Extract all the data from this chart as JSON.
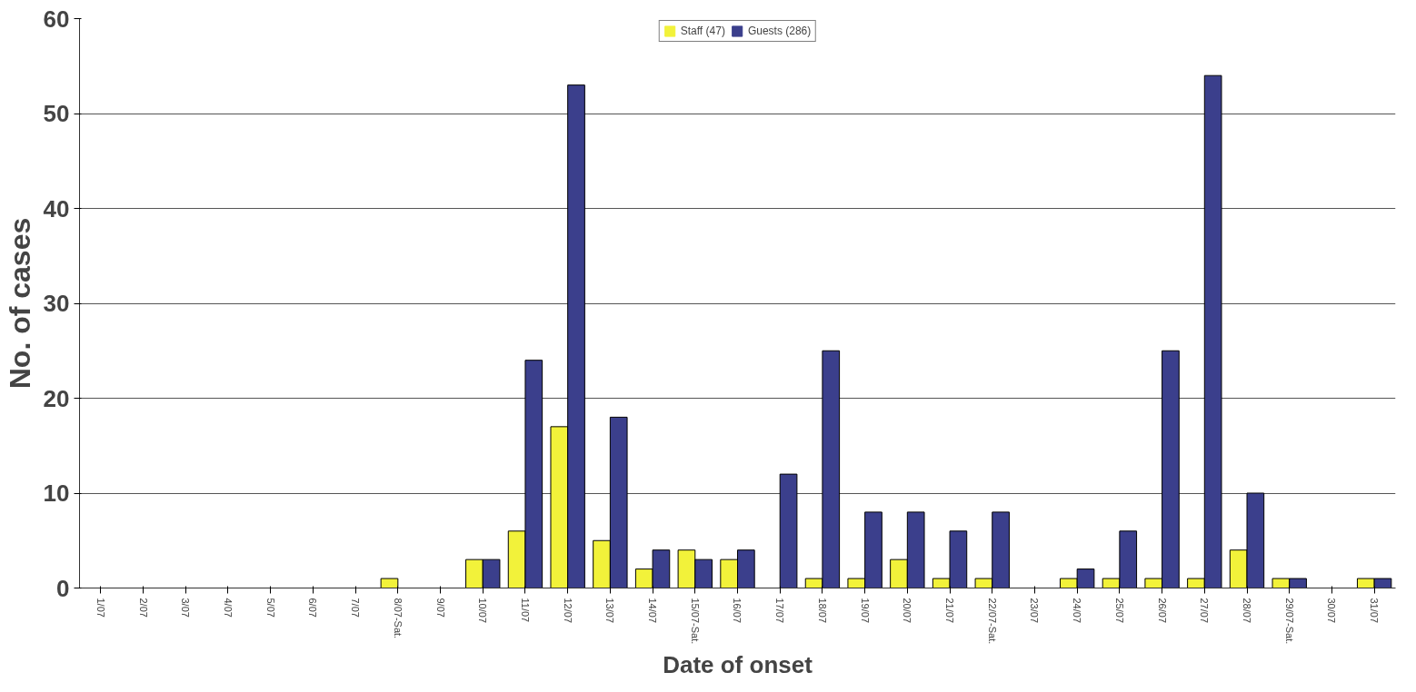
{
  "chart_data": {
    "type": "bar",
    "xlabel": "Date of onset",
    "ylabel": "No. of cases",
    "categories": [
      "1/07",
      "2/07",
      "3/07",
      "4/07",
      "5/07",
      "6/07",
      "7/07",
      "8/07-Sat.",
      "9/07",
      "10/07",
      "11/07",
      "12/07",
      "13/07",
      "14/07",
      "15/07-Sat.",
      "16/07",
      "17/07",
      "18/07",
      "19/07",
      "20/07",
      "21/07",
      "22/07-Sat.",
      "23/07",
      "24/07",
      "25/07",
      "26/07",
      "27/07",
      "28/07",
      "29/07-Sat.",
      "30/07",
      "31/07"
    ],
    "series": [
      {
        "name": "Staff (47)",
        "color": "#f2f23a",
        "values": [
          0,
          0,
          0,
          0,
          0,
          0,
          0,
          1,
          0,
          3,
          6,
          17,
          5,
          2,
          4,
          3,
          0,
          1,
          1,
          3,
          1,
          1,
          0,
          1,
          1,
          1,
          1,
          4,
          1,
          0,
          1
        ]
      },
      {
        "name": "Guests (286)",
        "color": "#3b3f8c",
        "values": [
          0,
          0,
          0,
          0,
          0,
          0,
          0,
          0,
          0,
          3,
          24,
          53,
          18,
          4,
          3,
          4,
          12,
          25,
          8,
          8,
          6,
          8,
          0,
          2,
          6,
          25,
          54,
          10,
          1,
          0,
          1
        ]
      }
    ],
    "ylim": [
      0,
      60
    ],
    "yticks": [
      0,
      10,
      20,
      30,
      40,
      50,
      60
    ],
    "grid": "y",
    "legend": "top"
  }
}
